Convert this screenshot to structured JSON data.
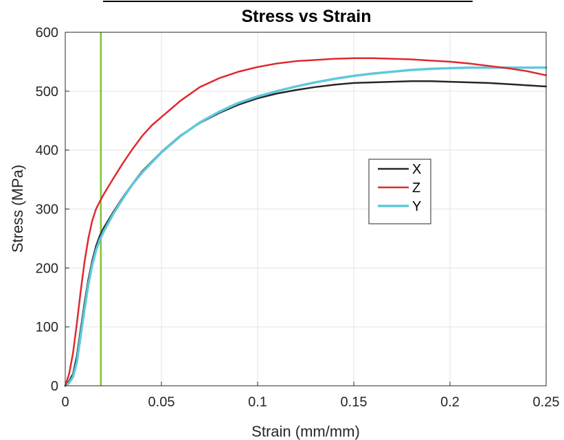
{
  "chart_data": {
    "type": "line",
    "title": "Stress vs Strain",
    "xlabel": "Strain (mm/mm)",
    "ylabel": "Stress (MPa)",
    "xlim": [
      0,
      0.25
    ],
    "ylim": [
      0,
      600
    ],
    "xticks": [
      0,
      0.05,
      0.1,
      0.15,
      0.2,
      0.25
    ],
    "xtick_labels": [
      "0",
      "0.05",
      "0.1",
      "0.15",
      "0.2",
      "0.25"
    ],
    "yticks": [
      0,
      100,
      200,
      300,
      400,
      500,
      600
    ],
    "ytick_labels": [
      "0",
      "100",
      "200",
      "300",
      "400",
      "500",
      "600"
    ],
    "grid": true,
    "legend_position": "center-right",
    "vertical_line": {
      "x": 0.0185,
      "color": "#7dc42e"
    },
    "series": [
      {
        "name": "X",
        "color": "#262626",
        "x": [
          0,
          0.002,
          0.004,
          0.006,
          0.008,
          0.01,
          0.012,
          0.014,
          0.016,
          0.018,
          0.02,
          0.025,
          0.03,
          0.035,
          0.04,
          0.05,
          0.06,
          0.07,
          0.08,
          0.09,
          0.1,
          0.11,
          0.12,
          0.13,
          0.14,
          0.15,
          0.16,
          0.17,
          0.18,
          0.19,
          0.2,
          0.21,
          0.22,
          0.23,
          0.24,
          0.25
        ],
        "y": [
          0,
          8,
          20,
          50,
          95,
          140,
          180,
          212,
          237,
          255,
          268,
          295,
          320,
          343,
          364,
          397,
          425,
          446,
          463,
          477,
          488,
          496,
          502,
          507,
          511,
          514,
          515,
          516,
          517,
          517,
          516,
          515,
          514,
          512,
          510,
          508
        ]
      },
      {
        "name": "Z",
        "color": "#e0282d",
        "x": [
          0,
          0.002,
          0.004,
          0.006,
          0.008,
          0.01,
          0.012,
          0.014,
          0.016,
          0.018,
          0.02,
          0.025,
          0.03,
          0.035,
          0.04,
          0.045,
          0.05,
          0.06,
          0.07,
          0.08,
          0.09,
          0.1,
          0.11,
          0.12,
          0.13,
          0.14,
          0.15,
          0.16,
          0.17,
          0.18,
          0.19,
          0.2,
          0.21,
          0.22,
          0.23,
          0.24,
          0.25
        ],
        "y": [
          0,
          20,
          55,
          105,
          160,
          210,
          250,
          280,
          300,
          313,
          325,
          352,
          378,
          402,
          424,
          442,
          456,
          484,
          507,
          522,
          533,
          541,
          547,
          551,
          553,
          555,
          556,
          556,
          555,
          554,
          552,
          550,
          547,
          543,
          539,
          534,
          527
        ]
      },
      {
        "name": "Y",
        "color": "#5ec8dc",
        "x": [
          0,
          0.002,
          0.004,
          0.006,
          0.008,
          0.01,
          0.012,
          0.014,
          0.016,
          0.018,
          0.02,
          0.025,
          0.03,
          0.035,
          0.04,
          0.05,
          0.06,
          0.07,
          0.08,
          0.09,
          0.1,
          0.11,
          0.12,
          0.13,
          0.14,
          0.15,
          0.16,
          0.17,
          0.18,
          0.19,
          0.2,
          0.21,
          0.22,
          0.23,
          0.24,
          0.25
        ],
        "y": [
          0,
          5,
          15,
          40,
          85,
          130,
          172,
          205,
          230,
          248,
          262,
          292,
          318,
          342,
          362,
          396,
          424,
          447,
          465,
          480,
          491,
          500,
          508,
          515,
          521,
          526,
          530,
          533,
          536,
          538,
          539,
          540,
          540,
          540,
          540,
          540
        ]
      }
    ]
  }
}
